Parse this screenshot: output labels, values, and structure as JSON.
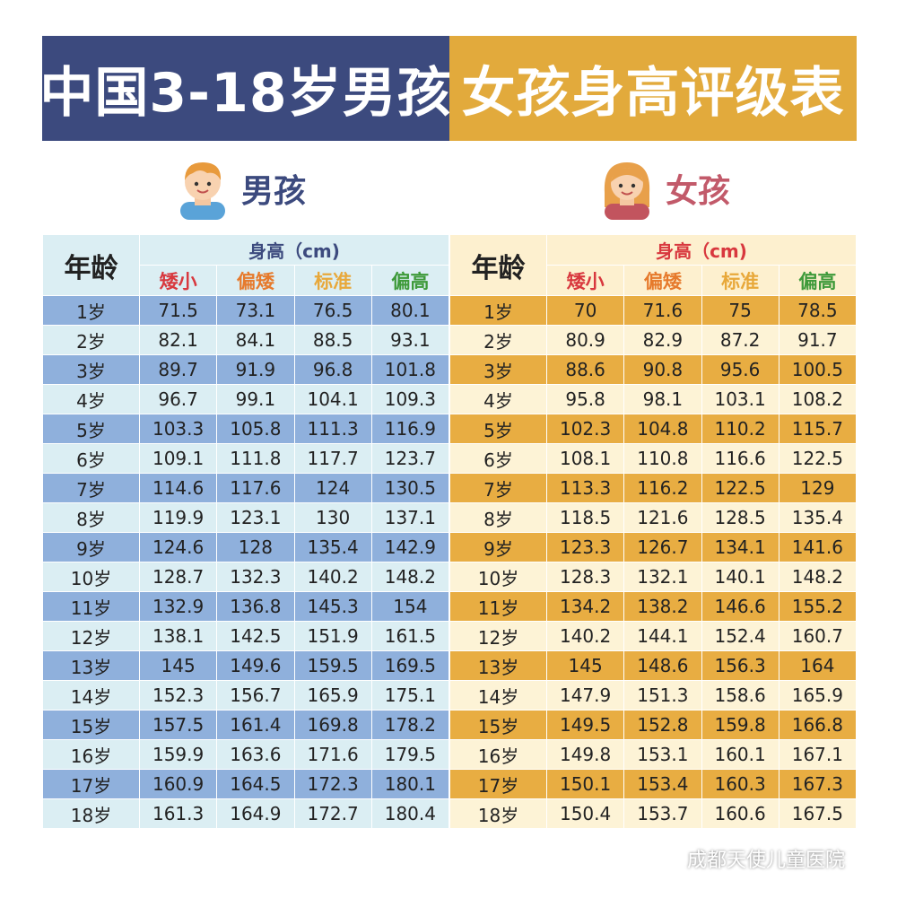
{
  "title": {
    "left": "中国3-18岁男孩",
    "right": "女孩身高评级表"
  },
  "boy_label": "男孩",
  "girl_label": "女孩",
  "table_headers": {
    "age": "年龄",
    "height": "身高（cm)",
    "short": "矮小",
    "lower": "偏矮",
    "standard": "标准",
    "tall": "偏高"
  },
  "boys_rows": [
    [
      "1岁",
      "71.5",
      "73.1",
      "76.5",
      "80.1"
    ],
    [
      "2岁",
      "82.1",
      "84.1",
      "88.5",
      "93.1"
    ],
    [
      "3岁",
      "89.7",
      "91.9",
      "96.8",
      "101.8"
    ],
    [
      "4岁",
      "96.7",
      "99.1",
      "104.1",
      "109.3"
    ],
    [
      "5岁",
      "103.3",
      "105.8",
      "111.3",
      "116.9"
    ],
    [
      "6岁",
      "109.1",
      "111.8",
      "117.7",
      "123.7"
    ],
    [
      "7岁",
      "114.6",
      "117.6",
      "124",
      "130.5"
    ],
    [
      "8岁",
      "119.9",
      "123.1",
      "130",
      "137.1"
    ],
    [
      "9岁",
      "124.6",
      "128",
      "135.4",
      "142.9"
    ],
    [
      "10岁",
      "128.7",
      "132.3",
      "140.2",
      "148.2"
    ],
    [
      "11岁",
      "132.9",
      "136.8",
      "145.3",
      "154"
    ],
    [
      "12岁",
      "138.1",
      "142.5",
      "151.9",
      "161.5"
    ],
    [
      "13岁",
      "145",
      "149.6",
      "159.5",
      "169.5"
    ],
    [
      "14岁",
      "152.3",
      "156.7",
      "165.9",
      "175.1"
    ],
    [
      "15岁",
      "157.5",
      "161.4",
      "169.8",
      "178.2"
    ],
    [
      "16岁",
      "159.9",
      "163.6",
      "171.6",
      "179.5"
    ],
    [
      "17岁",
      "160.9",
      "164.5",
      "172.3",
      "180.1"
    ],
    [
      "18岁",
      "161.3",
      "164.9",
      "172.7",
      "180.4"
    ]
  ],
  "girls_rows": [
    [
      "1岁",
      "70",
      "71.6",
      "75",
      "78.5"
    ],
    [
      "2岁",
      "80.9",
      "82.9",
      "87.2",
      "91.7"
    ],
    [
      "3岁",
      "88.6",
      "90.8",
      "95.6",
      "100.5"
    ],
    [
      "4岁",
      "95.8",
      "98.1",
      "103.1",
      "108.2"
    ],
    [
      "5岁",
      "102.3",
      "104.8",
      "110.2",
      "115.7"
    ],
    [
      "6岁",
      "108.1",
      "110.8",
      "116.6",
      "122.5"
    ],
    [
      "7岁",
      "113.3",
      "116.2",
      "122.5",
      "129"
    ],
    [
      "8岁",
      "118.5",
      "121.6",
      "128.5",
      "135.4"
    ],
    [
      "9岁",
      "123.3",
      "126.7",
      "134.1",
      "141.6"
    ],
    [
      "10岁",
      "128.3",
      "132.1",
      "140.1",
      "148.2"
    ],
    [
      "11岁",
      "134.2",
      "138.2",
      "146.6",
      "155.2"
    ],
    [
      "12岁",
      "140.2",
      "144.1",
      "152.4",
      "160.7"
    ],
    [
      "13岁",
      "145",
      "148.6",
      "156.3",
      "164"
    ],
    [
      "14岁",
      "147.9",
      "151.3",
      "158.6",
      "165.9"
    ],
    [
      "15岁",
      "149.5",
      "152.8",
      "159.8",
      "166.8"
    ],
    [
      "16岁",
      "149.8",
      "153.1",
      "160.1",
      "167.1"
    ],
    [
      "17岁",
      "150.1",
      "153.4",
      "160.3",
      "167.3"
    ],
    [
      "18岁",
      "150.4",
      "153.7",
      "160.6",
      "167.5"
    ]
  ],
  "watermark": "成都天使儿童医院",
  "colors": {
    "boy_banner": "#3c4a7e",
    "girl_banner": "#e2aa3c",
    "short": "#d8383e",
    "lower": "#e67a2c",
    "standard": "#e8a83a",
    "tall": "#3e9a3a"
  }
}
